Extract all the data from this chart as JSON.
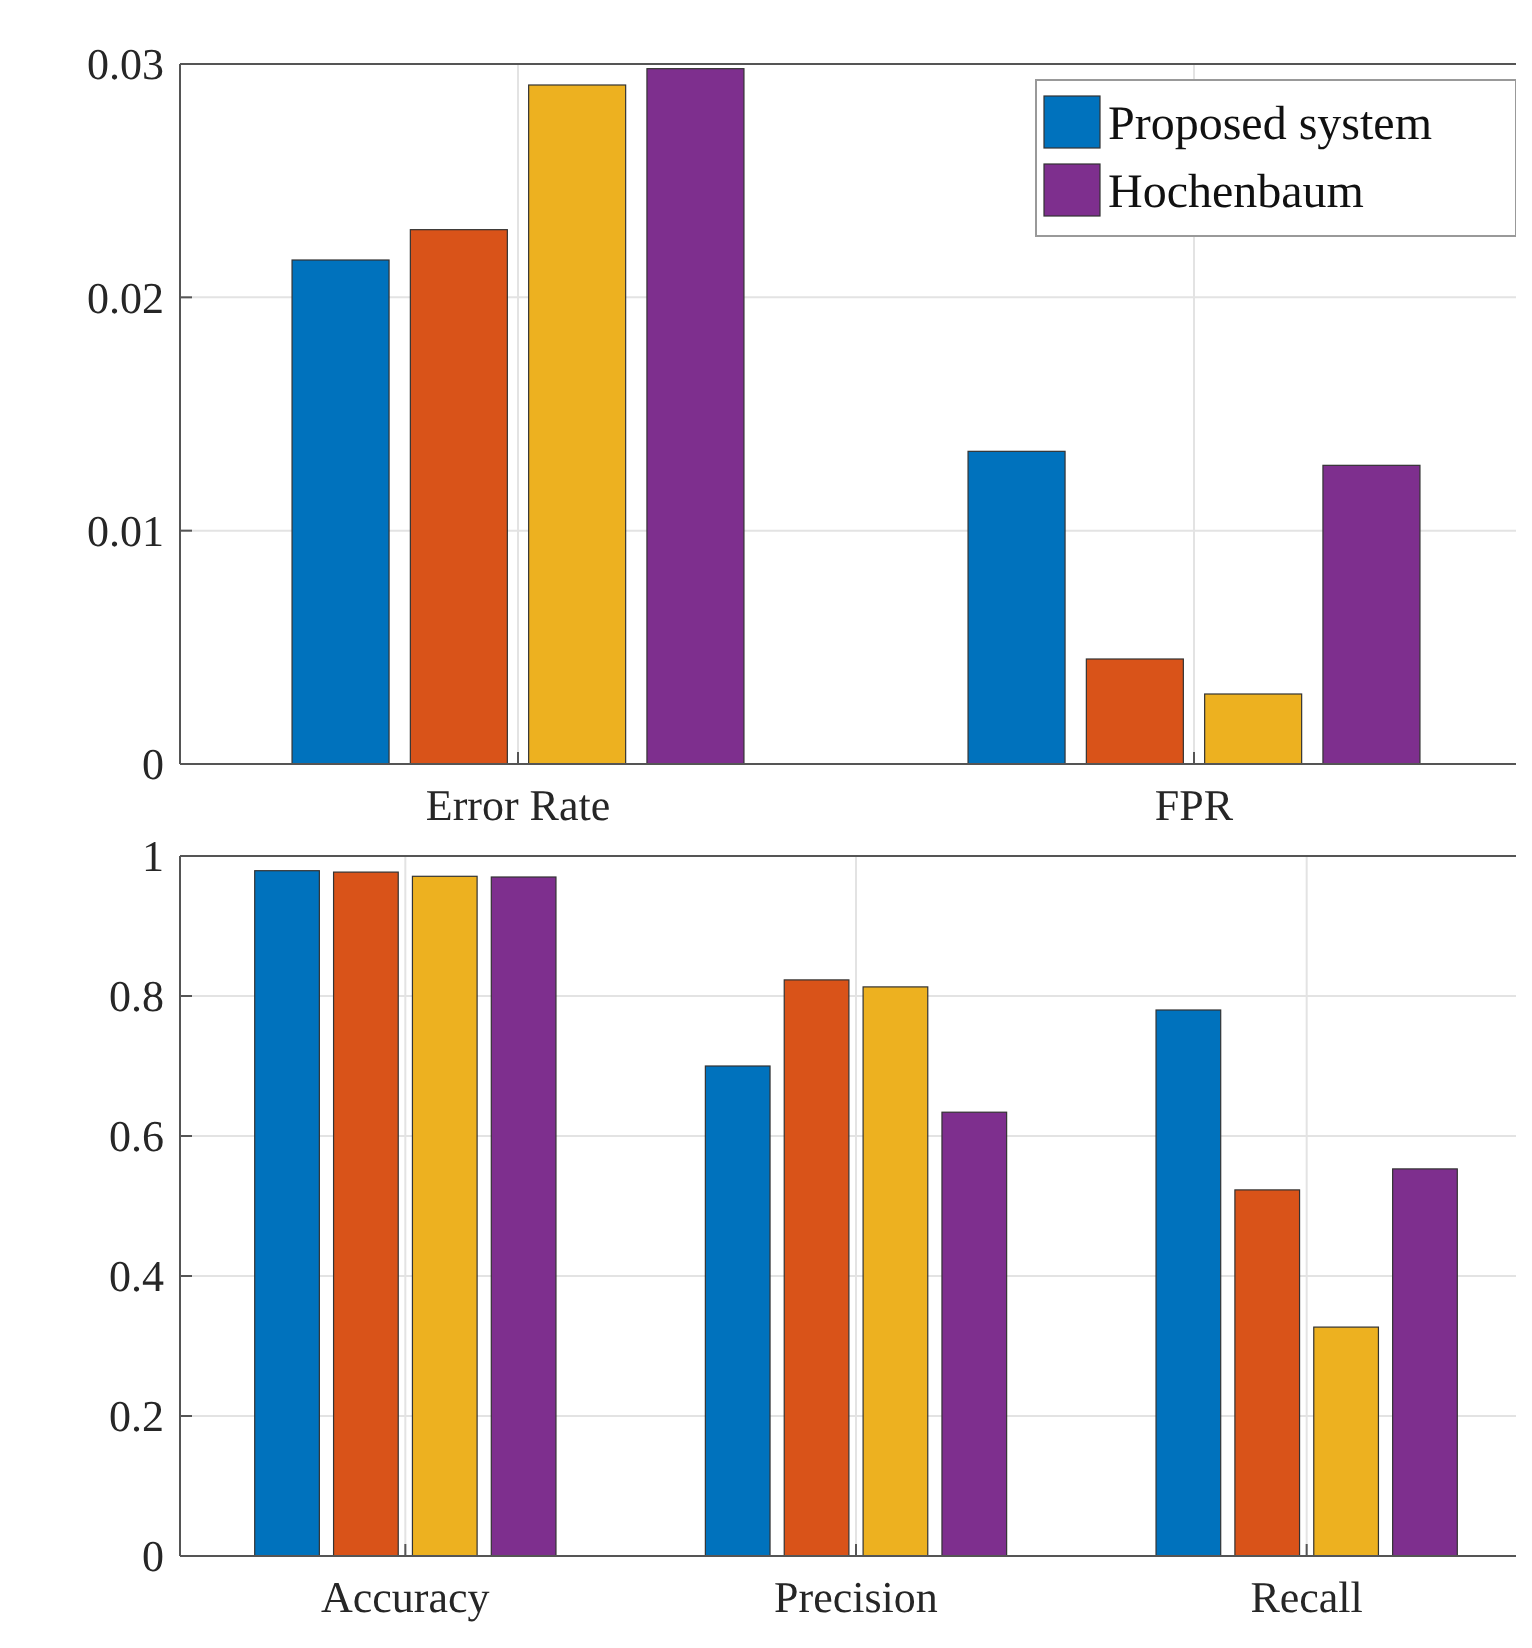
{
  "chart_data": [
    {
      "type": "bar",
      "categories": [
        "Error Rate",
        "FPR"
      ],
      "series": [
        {
          "name": "Proposed system",
          "color": "#0072bd",
          "values": [
            0.0216,
            0.0134
          ]
        },
        {
          "color": "#d95319",
          "values": [
            0.0229,
            0.0045
          ]
        },
        {
          "color": "#edb120",
          "values": [
            0.0291,
            0.003
          ]
        },
        {
          "name": "Hochenbaum",
          "color": "#7e2f8e",
          "values": [
            0.0298,
            0.0128
          ]
        }
      ],
      "ylim": [
        0,
        0.03
      ],
      "yticks": [
        0,
        0.01,
        0.02,
        0.03
      ],
      "grid": true,
      "legend": "top right"
    },
    {
      "type": "bar",
      "categories": [
        "Accuracy",
        "Precision",
        "Recall"
      ],
      "series": [
        {
          "color": "#0072bd",
          "values": [
            0.979,
            0.7,
            0.78
          ]
        },
        {
          "color": "#d95319",
          "values": [
            0.977,
            0.823,
            0.523
          ]
        },
        {
          "color": "#edb120",
          "values": [
            0.971,
            0.813,
            0.327
          ]
        },
        {
          "color": "#7e2f8e",
          "values": [
            0.97,
            0.634,
            0.553
          ]
        }
      ],
      "ylim": [
        0,
        1
      ],
      "yticks": [
        0,
        0.2,
        0.4,
        0.6,
        0.8,
        1
      ],
      "grid": true,
      "legend": false
    }
  ]
}
